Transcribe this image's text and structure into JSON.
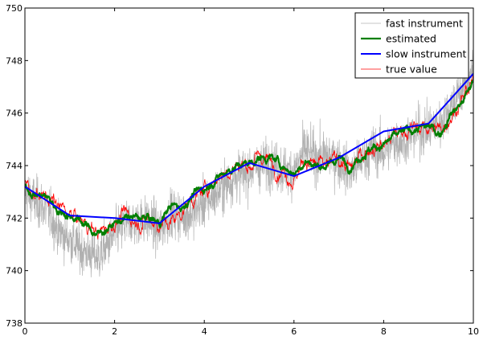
{
  "chart_data": {
    "type": "line",
    "title": "",
    "xlabel": "",
    "ylabel": "",
    "xlim": [
      0,
      10
    ],
    "ylim": [
      738,
      750
    ],
    "x_ticks": [
      0,
      2,
      4,
      6,
      8,
      10
    ],
    "y_ticks": [
      738,
      740,
      742,
      744,
      746,
      748,
      750
    ],
    "x_tick_labels": [
      "0",
      "2",
      "4",
      "6",
      "8",
      "10"
    ],
    "y_tick_labels": [
      "738",
      "740",
      "742",
      "744",
      "746",
      "748",
      "750"
    ],
    "grid": false,
    "legend_position": "top-right",
    "legend": [
      {
        "label": "fast instrument",
        "color": "#b0b0b0"
      },
      {
        "label": "estimated",
        "color": "#007f00"
      },
      {
        "label": "slow instrument",
        "color": "#0000ff"
      },
      {
        "label": "true value",
        "color": "#ff0000"
      }
    ],
    "series": [
      {
        "name": "slow instrument",
        "color": "#0000ff",
        "x": [
          0,
          1,
          2,
          3,
          4,
          5,
          6,
          7,
          8,
          9,
          10
        ],
        "y": [
          743.2,
          742.1,
          742.0,
          741.8,
          743.2,
          744.1,
          743.6,
          744.3,
          745.3,
          745.6,
          747.5
        ]
      },
      {
        "name": "true value",
        "color": "#ff0000",
        "x": [
          0,
          0.25,
          0.5,
          0.75,
          1.0,
          1.25,
          1.5,
          1.65,
          2.0,
          2.25,
          2.5,
          2.75,
          3.0,
          3.25,
          3.5,
          3.75,
          4.0,
          4.25,
          4.5,
          4.75,
          5.0,
          5.25,
          5.5,
          5.75,
          6.0,
          6.25,
          6.5,
          6.75,
          7.0,
          7.25,
          7.5,
          7.75,
          8.0,
          8.25,
          8.5,
          8.75,
          9.0,
          9.25,
          9.5,
          9.75,
          10.0
        ],
        "y": [
          743.4,
          742.9,
          742.8,
          742.4,
          742.1,
          741.9,
          741.6,
          741.4,
          741.9,
          742.1,
          741.9,
          742.0,
          741.8,
          741.8,
          742.3,
          742.8,
          743.0,
          743.6,
          743.8,
          744.1,
          744.0,
          744.4,
          744.1,
          743.9,
          743.5,
          744.3,
          744.0,
          743.9,
          744.3,
          743.8,
          744.4,
          744.8,
          744.8,
          745.2,
          745.4,
          745.4,
          745.5,
          745.3,
          746.0,
          746.5,
          747.2
        ]
      },
      {
        "name": "estimated",
        "color": "#007f00",
        "x": [
          0,
          0.25,
          0.5,
          0.75,
          1.0,
          1.25,
          1.5,
          1.65,
          2.0,
          2.25,
          2.5,
          2.75,
          3.0,
          3.25,
          3.5,
          3.75,
          4.0,
          4.25,
          4.5,
          4.75,
          5.0,
          5.25,
          5.5,
          5.75,
          6.0,
          6.25,
          6.5,
          6.75,
          7.0,
          7.25,
          7.5,
          7.75,
          8.0,
          8.25,
          8.5,
          8.75,
          9.0,
          9.25,
          9.5,
          9.75,
          10.0
        ],
        "y": [
          743.2,
          742.9,
          742.8,
          742.3,
          742.1,
          741.9,
          741.5,
          741.4,
          741.8,
          742.0,
          742.0,
          742.0,
          741.8,
          742.5,
          742.4,
          742.9,
          743.1,
          743.5,
          743.8,
          744.0,
          744.1,
          744.3,
          744.3,
          744.0,
          743.7,
          744.2,
          744.0,
          744.0,
          744.3,
          744.0,
          744.4,
          744.7,
          744.8,
          745.1,
          745.3,
          745.4,
          745.5,
          745.2,
          746.0,
          746.4,
          747.2
        ]
      },
      {
        "name": "fast instrument",
        "color": "#b0b0b0",
        "x": [
          0,
          0.25,
          0.5,
          0.75,
          1.0,
          1.25,
          1.5,
          1.65,
          2.0,
          2.25,
          2.5,
          2.75,
          3.0,
          3.25,
          3.5,
          3.75,
          4.0,
          4.25,
          4.5,
          4.75,
          5.0,
          5.25,
          5.5,
          5.75,
          6.0,
          6.25,
          6.5,
          6.75,
          7.0,
          7.25,
          7.5,
          7.75,
          8.0,
          8.25,
          8.5,
          8.75,
          9.0,
          9.25,
          9.5,
          9.75,
          10.0
        ],
        "y": [
          743.0,
          742.6,
          742.3,
          741.5,
          741.2,
          740.8,
          740.6,
          740.5,
          741.4,
          741.8,
          741.9,
          741.9,
          741.5,
          742.2,
          742.1,
          742.2,
          742.6,
          742.9,
          743.3,
          743.6,
          743.8,
          744.0,
          744.1,
          743.8,
          743.8,
          744.6,
          744.3,
          744.4,
          744.2,
          743.7,
          744.2,
          744.6,
          744.5,
          744.9,
          745.0,
          745.3,
          745.4,
          745.6,
          746.3,
          746.9,
          747.8
        ]
      }
    ]
  }
}
